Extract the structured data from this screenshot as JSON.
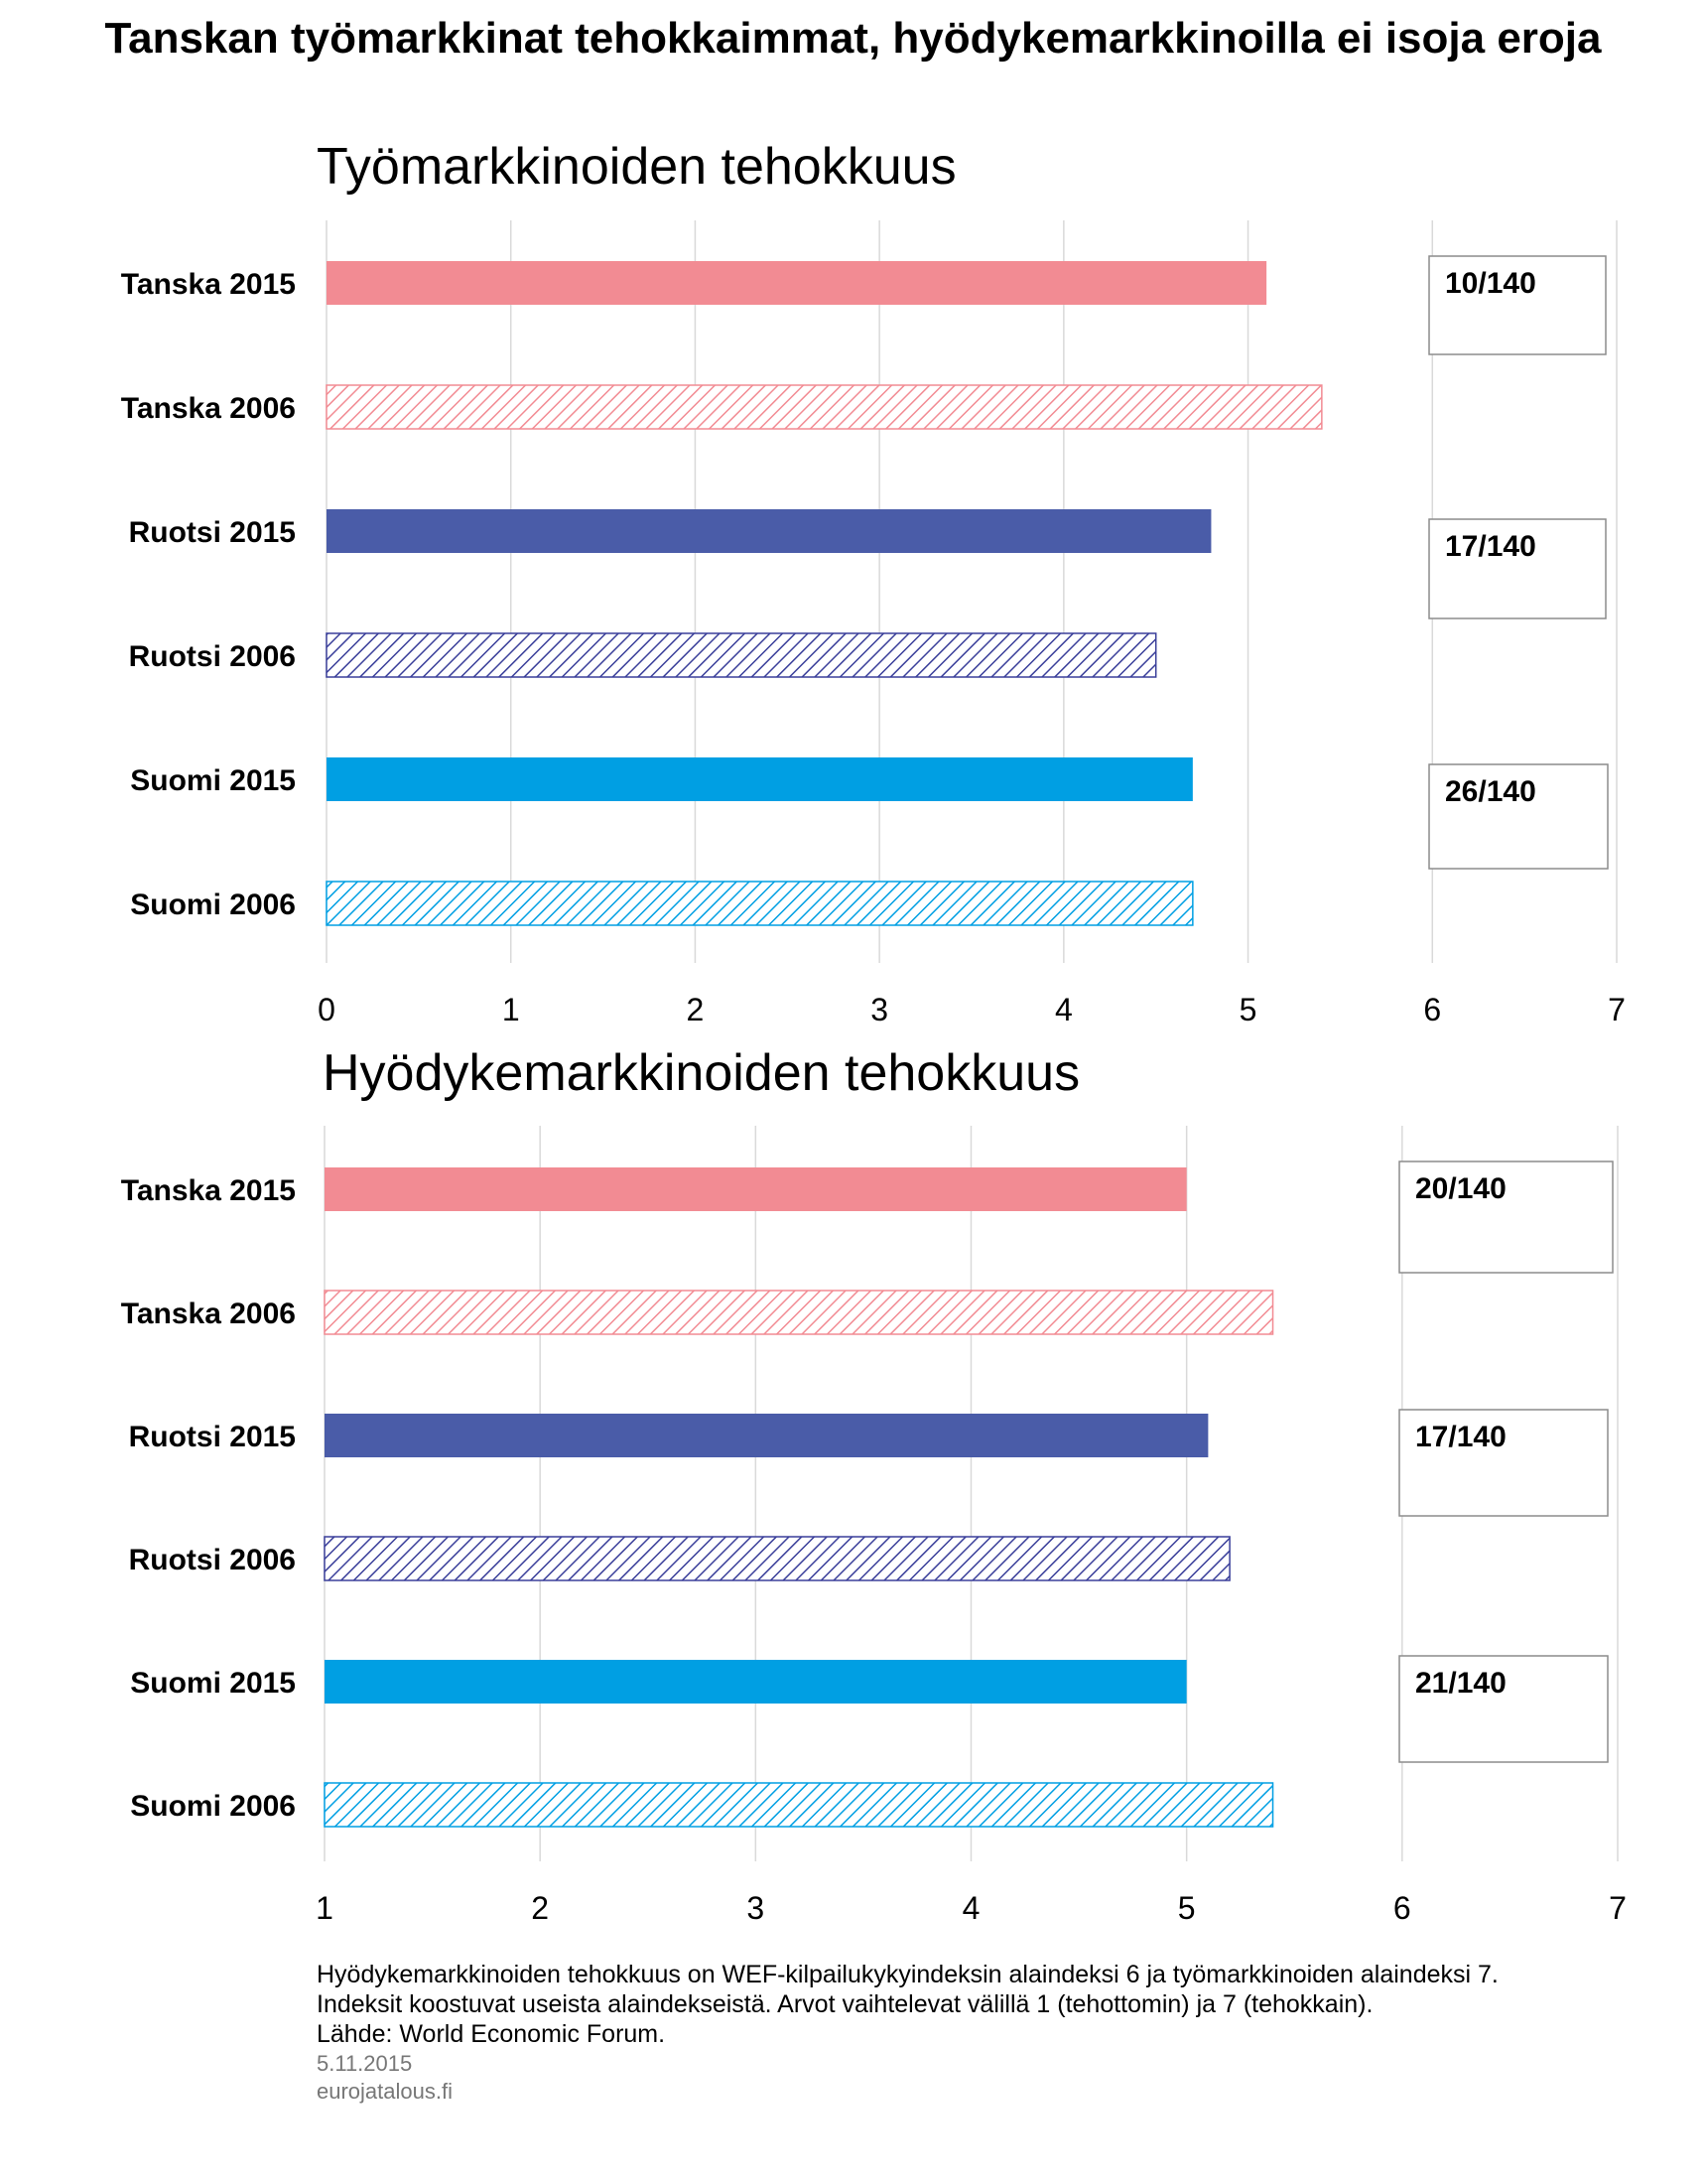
{
  "title": "Tanskan työmarkkinat tehokkaimmat, hyödykemarkkinoilla ei isoja eroja",
  "colors": {
    "denmark": "#f28b93",
    "sweden": "#4a5ca8",
    "finland": "#009fe3",
    "grid": "#d9d9d9"
  },
  "chart_data": [
    {
      "type": "bar",
      "orientation": "horizontal",
      "title": "Työmarkkinoiden tehokkuus",
      "categories": [
        "Tanska 2015",
        "Tanska 2006",
        "Ruotsi 2015",
        "Ruotsi 2006",
        "Suomi 2015",
        "Suomi 2006"
      ],
      "values": [
        5.1,
        5.4,
        4.8,
        4.5,
        4.7,
        4.7
      ],
      "xlim": [
        0,
        7
      ],
      "xticks": [
        "0",
        "1",
        "2",
        "3",
        "4",
        "5",
        "6",
        "7"
      ],
      "grid": true,
      "rank_labels": [
        "10/140",
        "17/140",
        "26/140"
      ]
    },
    {
      "type": "bar",
      "orientation": "horizontal",
      "title": "Hyödykemarkkinoiden tehokkuus",
      "categories": [
        "Tanska 2015",
        "Tanska 2006",
        "Ruotsi 2015",
        "Ruotsi 2006",
        "Suomi 2015",
        "Suomi 2006"
      ],
      "values": [
        5.0,
        5.4,
        5.1,
        5.2,
        5.0,
        5.4
      ],
      "xlim": [
        1,
        7
      ],
      "xticks": [
        "1",
        "2",
        "3",
        "4",
        "5",
        "6",
        "7"
      ],
      "grid": true,
      "rank_labels": [
        "20/140",
        "17/140",
        "21/140"
      ]
    }
  ],
  "footnote": {
    "line1": "Hyödykemarkkinoiden tehokkuus on WEF-kilpailukykyindeksin alaindeksi 6 ja työmarkkinoiden alaindeksi 7.",
    "line2": "Indeksit koostuvat useista alaindekseistä. Arvot vaihtelevat välillä 1 (tehottomin) ja 7 (tehokkain).",
    "source": "Lähde: World Economic Forum.",
    "date": "5.11.2015",
    "site": "eurojatalous.fi"
  }
}
